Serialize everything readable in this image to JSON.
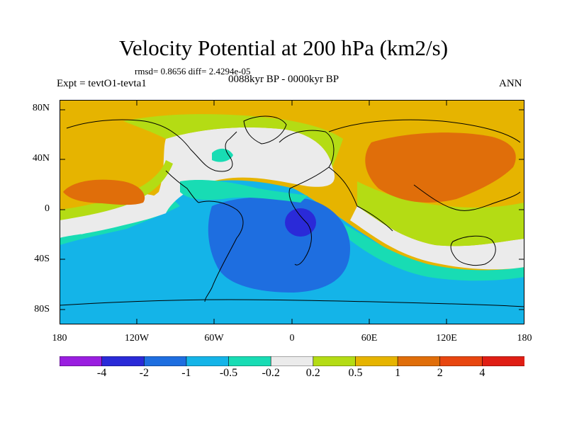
{
  "title": "Velocity Potential at 200 hPa (km2/s)",
  "stats_line": "rmsd= 0.8656 diff= 2.4294e-05",
  "experiment": "Expt = tevtO1-tevta1",
  "period": "0088kyr BP - 0000kyr BP",
  "season": "ANN",
  "lat_ticks": [
    "80N",
    "40N",
    "0",
    "40S",
    "80S"
  ],
  "lon_ticks": [
    "180",
    "120W",
    "60W",
    "0",
    "60E",
    "120E",
    "180"
  ],
  "colorbar": {
    "labels": [
      "-4",
      "-2",
      "-1",
      "-0.5",
      "-0.2",
      "0.2",
      "0.5",
      "1",
      "2",
      "4"
    ],
    "colors": [
      "#9a1ee0",
      "#2a2ad8",
      "#1e6ee0",
      "#14b4e8",
      "#18dcb4",
      "#ebebeb",
      "#b4dc14",
      "#e6b400",
      "#e06e0a",
      "#e84610",
      "#e01e14"
    ]
  },
  "map_colors": {
    "strong_negative": "#2a2ad8",
    "negative": "#1e6ee0",
    "weak_negative": "#14b4e8",
    "slight_negative": "#18dcb4",
    "neutral": "#ebebeb",
    "slight_positive": "#b4dc14",
    "positive": "#e6b400",
    "strong_positive": "#e06e0a"
  }
}
